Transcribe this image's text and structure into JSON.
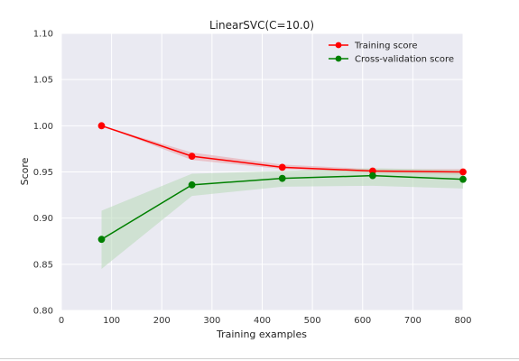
{
  "chart_data": {
    "type": "line",
    "title": "LinearSVC(C=10.0)",
    "xlabel": "Training examples",
    "ylabel": "Score",
    "xlim": [
      0,
      800
    ],
    "ylim": [
      0.8,
      1.1
    ],
    "xticks": [
      0,
      100,
      200,
      300,
      400,
      500,
      600,
      700,
      800
    ],
    "yticks": [
      0.8,
      0.85,
      0.9,
      0.95,
      1.0,
      1.05,
      1.1
    ],
    "xtick_labels": [
      "0",
      "100",
      "200",
      "300",
      "400",
      "500",
      "600",
      "700",
      "800"
    ],
    "ytick_labels": [
      "0.80",
      "0.85",
      "0.90",
      "0.95",
      "1.00",
      "1.05",
      "1.10"
    ],
    "grid": true,
    "legend_position": "top-right",
    "x": [
      80,
      260,
      440,
      620,
      800
    ],
    "series": [
      {
        "name": "Training score",
        "color": "#ff0000",
        "band_color": "#e8a0a8",
        "values": [
          1.0,
          0.967,
          0.955,
          0.951,
          0.95
        ],
        "band_lower": [
          1.0,
          0.963,
          0.953,
          0.949,
          0.947
        ],
        "band_upper": [
          1.0,
          0.971,
          0.958,
          0.953,
          0.953
        ]
      },
      {
        "name": "Cross-validation score",
        "color": "#008000",
        "band_color": "#b8d8b8",
        "values": [
          0.877,
          0.936,
          0.943,
          0.946,
          0.942
        ],
        "band_lower": [
          0.845,
          0.924,
          0.934,
          0.935,
          0.932
        ],
        "band_upper": [
          0.908,
          0.948,
          0.951,
          0.954,
          0.952
        ]
      }
    ]
  }
}
